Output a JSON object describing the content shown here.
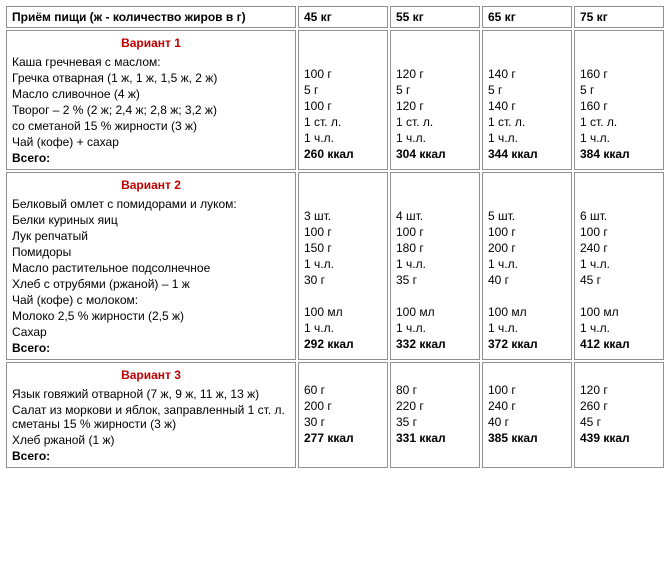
{
  "header": {
    "col0": "Приём пищи (ж - количество жиров в г)",
    "col1": "45 кг",
    "col2": "55 кг",
    "col3": "65 кг",
    "col4": "75 кг"
  },
  "sections": [
    {
      "variant": "Вариант 1",
      "rows": [
        {
          "label": "Каша гречневая с маслом:",
          "v": [
            "",
            "",
            "",
            ""
          ]
        },
        {
          "label": "Гречка отварная (1 ж, 1 ж, 1,5 ж, 2 ж)",
          "v": [
            "100 г",
            "120 г",
            "140 г",
            "160 г"
          ]
        },
        {
          "label": "Масло сливочное (4 ж)",
          "v": [
            "5 г",
            "5 г",
            "5 г",
            "5 г"
          ]
        },
        {
          "label": "Творог – 2 % (2 ж; 2,4 ж; 2,8 ж; 3,2 ж)",
          "v": [
            "100 г",
            "120 г",
            "140 г",
            "160 г"
          ]
        },
        {
          "label": "со сметаной 15 % жирности (3 ж)",
          "v": [
            "1 ст. л.",
            "1 ст. л.",
            "1 ст. л.",
            "1 ст. л."
          ]
        },
        {
          "label": "Чай (кофе) + сахар",
          "v": [
            "1 ч.л.",
            "1 ч.л.",
            "1 ч.л.",
            "1 ч.л."
          ]
        }
      ],
      "total_label": "Всего:",
      "total": [
        "260 ккал",
        "304 ккал",
        "344 ккал",
        "384 ккал"
      ]
    },
    {
      "variant": "Вариант 2",
      "rows": [
        {
          "label": "Белковый омлет с помидорами и луком:",
          "v": [
            "",
            "",
            "",
            ""
          ]
        },
        {
          "label": "Белки куриных яиц",
          "v": [
            "3 шт.",
            "4 шт.",
            "5 шт.",
            "6 шт."
          ]
        },
        {
          "label": "Лук репчатый",
          "v": [
            "100 г",
            "100 г",
            "100 г",
            "100 г"
          ]
        },
        {
          "label": "Помидоры",
          "v": [
            "150 г",
            "180 г",
            "200 г",
            "240 г"
          ]
        },
        {
          "label": "Масло растительное подсолнечное",
          "v": [
            "1 ч.л.",
            "1 ч.л.",
            "1 ч.л.",
            "1 ч.л."
          ]
        },
        {
          "label": "Хлеб с отрубями (ржаной) – 1 ж",
          "v": [
            "30 г",
            "35 г",
            "40 г",
            "45 г"
          ]
        },
        {
          "label": "Чай (кофе) с молоком:",
          "v": [
            "",
            "",
            "",
            ""
          ]
        },
        {
          "label": "Молоко 2,5 % жирности (2,5 ж)",
          "v": [
            "100 мл",
            "100 мл",
            "100 мл",
            "100 мл"
          ]
        },
        {
          "label": "Сахар",
          "v": [
            "1 ч.л.",
            "1 ч.л.",
            "1 ч.л.",
            "1 ч.л."
          ]
        }
      ],
      "total_label": "Всего:",
      "total": [
        "292 ккал",
        "332 ккал",
        "372 ккал",
        "412 ккал"
      ]
    },
    {
      "variant": "Вариант 3",
      "rows": [
        {
          "label": "Язык говяжий отварной (7 ж, 9 ж, 11 ж, 13 ж)",
          "v": [
            "60 г",
            "80 г",
            "100 г",
            "120 г"
          ]
        },
        {
          "label": "Салат из моркови и яблок, заправленный 1 ст. л. сметаны 15 % жирности (3 ж)",
          "v": [
            "200 г",
            "220 г",
            "240 г",
            "260 г"
          ]
        },
        {
          "label": "Хлеб ржаной (1 ж)",
          "v": [
            "30 г",
            "35 г",
            "40 г",
            "45 г"
          ]
        }
      ],
      "total_label": "Всего:",
      "total": [
        "277 ккал",
        "331 ккал",
        "385 ккал",
        "439 ккал"
      ]
    }
  ]
}
